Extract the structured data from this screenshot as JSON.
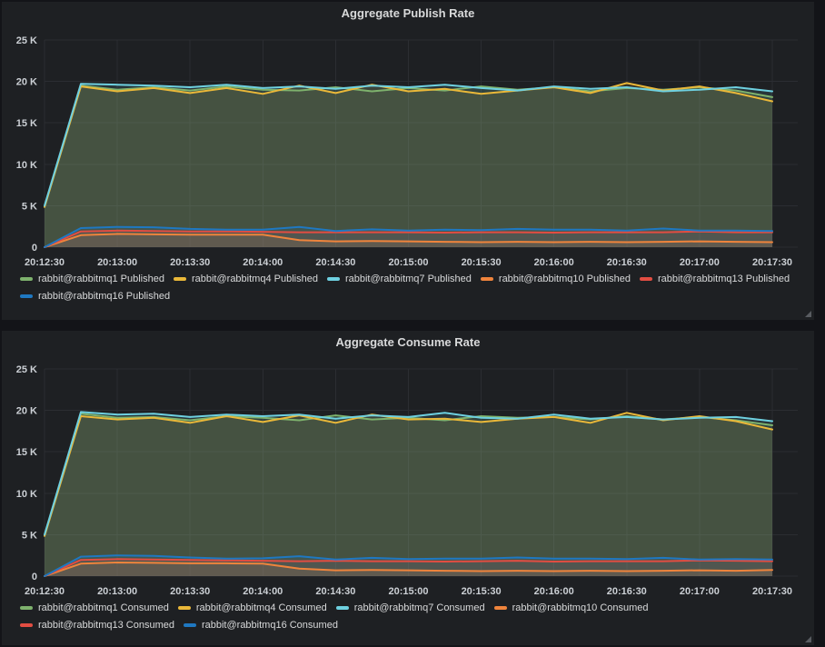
{
  "colors": {
    "green": "#7EB26D",
    "yellow": "#EAB839",
    "cyan": "#6ED0E0",
    "orange": "#EF843C",
    "red": "#E24D42",
    "blue": "#1F78C1",
    "panel_background": "#1e2023",
    "page_background": "#131418",
    "text": "#d8d9da"
  },
  "panels": [
    {
      "title": "Aggregate Publish Rate",
      "chart_data": {
        "type": "line",
        "title": "Aggregate Publish Rate",
        "xlabel": "",
        "ylabel": "",
        "ylim": [
          0,
          25000
        ],
        "grid": true,
        "legend_position": "bottom",
        "fill_opacity": 0.12,
        "y_ticks": [
          "0",
          "5 K",
          "10 K",
          "15 K",
          "20 K",
          "25 K"
        ],
        "x_ticks": [
          "20:12:30",
          "20:13:00",
          "20:13:30",
          "20:14:00",
          "20:14:30",
          "20:15:00",
          "20:15:30",
          "20:16:00",
          "20:16:30",
          "20:17:00",
          "20:17:30"
        ],
        "x_step_seconds": 15,
        "series": [
          {
            "name": "rabbit@rabbitmq1 Published",
            "color": "#7EB26D",
            "values": [
              4900,
              19500,
              19000,
              19300,
              18900,
              19400,
              19000,
              18900,
              19300,
              18800,
              19200,
              18900,
              19400,
              19000,
              19300,
              18800,
              19200,
              19000,
              19300,
              18900,
              18100
            ]
          },
          {
            "name": "rabbit@rabbitmq4 Published",
            "color": "#EAB839",
            "values": [
              4850,
              19400,
              18800,
              19200,
              18600,
              19200,
              18500,
              19500,
              18600,
              19600,
              18800,
              19100,
              18500,
              18900,
              19300,
              18600,
              19800,
              18900,
              19400,
              18600,
              17600
            ]
          },
          {
            "name": "rabbit@rabbitmq7 Published",
            "color": "#6ED0E0",
            "values": [
              5000,
              19700,
              19600,
              19500,
              19300,
              19600,
              19200,
              19400,
              19100,
              19500,
              19300,
              19600,
              19200,
              18900,
              19400,
              19100,
              19300,
              18800,
              19000,
              19300,
              18800
            ]
          },
          {
            "name": "rabbit@rabbitmq10 Published",
            "color": "#EF843C",
            "values": [
              0,
              1450,
              1600,
              1550,
              1500,
              1500,
              1500,
              850,
              700,
              750,
              700,
              650,
              600,
              650,
              600,
              650,
              600,
              650,
              700,
              650,
              600
            ]
          },
          {
            "name": "rabbit@rabbitmq13 Published",
            "color": "#E24D42",
            "values": [
              0,
              1900,
              2000,
              1950,
              1900,
              1900,
              1850,
              1800,
              1800,
              1800,
              1800,
              1750,
              1800,
              1800,
              1750,
              1800,
              1800,
              1800,
              1900,
              1800,
              1800
            ]
          },
          {
            "name": "rabbit@rabbitmq16 Published",
            "color": "#1F78C1",
            "values": [
              0,
              2300,
              2450,
              2400,
              2200,
              2100,
              2100,
              2450,
              1950,
              2150,
              2000,
              2100,
              2050,
              2200,
              2100,
              2100,
              2000,
              2250,
              2000,
              2000,
              1950
            ]
          }
        ]
      }
    },
    {
      "title": "Aggregate Consume Rate",
      "chart_data": {
        "type": "line",
        "title": "Aggregate Consume Rate",
        "xlabel": "",
        "ylabel": "",
        "ylim": [
          0,
          25000
        ],
        "grid": true,
        "legend_position": "bottom",
        "fill_opacity": 0.12,
        "y_ticks": [
          "0",
          "5 K",
          "10 K",
          "15 K",
          "20 K",
          "25 K"
        ],
        "x_ticks": [
          "20:12:30",
          "20:13:00",
          "20:13:30",
          "20:14:00",
          "20:14:30",
          "20:15:00",
          "20:15:30",
          "20:16:00",
          "20:16:30",
          "20:17:00",
          "20:17:30"
        ],
        "x_step_seconds": 15,
        "series": [
          {
            "name": "rabbit@rabbitmq1 Consumed",
            "color": "#7EB26D",
            "values": [
              4900,
              19600,
              19100,
              19200,
              18800,
              19300,
              19100,
              18800,
              19400,
              18900,
              19100,
              18800,
              19300,
              19100,
              19200,
              18900,
              19300,
              18900,
              19200,
              18800,
              18200
            ]
          },
          {
            "name": "rabbit@rabbitmq4 Consumed",
            "color": "#EAB839",
            "values": [
              4850,
              19300,
              18900,
              19100,
              18500,
              19300,
              18600,
              19400,
              18500,
              19500,
              18900,
              19000,
              18600,
              19000,
              19200,
              18500,
              19700,
              18800,
              19300,
              18700,
              17700
            ]
          },
          {
            "name": "rabbit@rabbitmq7 Consumed",
            "color": "#6ED0E0",
            "values": [
              5000,
              19800,
              19500,
              19600,
              19200,
              19500,
              19300,
              19500,
              19000,
              19400,
              19200,
              19700,
              19100,
              19000,
              19500,
              19000,
              19200,
              18900,
              19100,
              19200,
              18700
            ]
          },
          {
            "name": "rabbit@rabbitmq10 Consumed",
            "color": "#EF843C",
            "values": [
              0,
              1500,
              1650,
              1600,
              1550,
              1550,
              1500,
              900,
              700,
              750,
              700,
              650,
              600,
              650,
              600,
              650,
              600,
              650,
              700,
              650,
              750
            ]
          },
          {
            "name": "rabbit@rabbitmq13 Consumed",
            "color": "#E24D42",
            "values": [
              0,
              1950,
              2050,
              2000,
              1950,
              1900,
              1850,
              1800,
              1850,
              1800,
              1800,
              1750,
              1800,
              1850,
              1750,
              1800,
              1800,
              1800,
              1900,
              1850,
              1800
            ]
          },
          {
            "name": "rabbit@rabbitmq16 Consumed",
            "color": "#1F78C1",
            "values": [
              0,
              2350,
              2500,
              2450,
              2250,
              2100,
              2150,
              2400,
              2000,
              2200,
              2050,
              2100,
              2100,
              2250,
              2100,
              2100,
              2050,
              2200,
              2000,
              2050,
              2000
            ]
          }
        ]
      }
    }
  ]
}
